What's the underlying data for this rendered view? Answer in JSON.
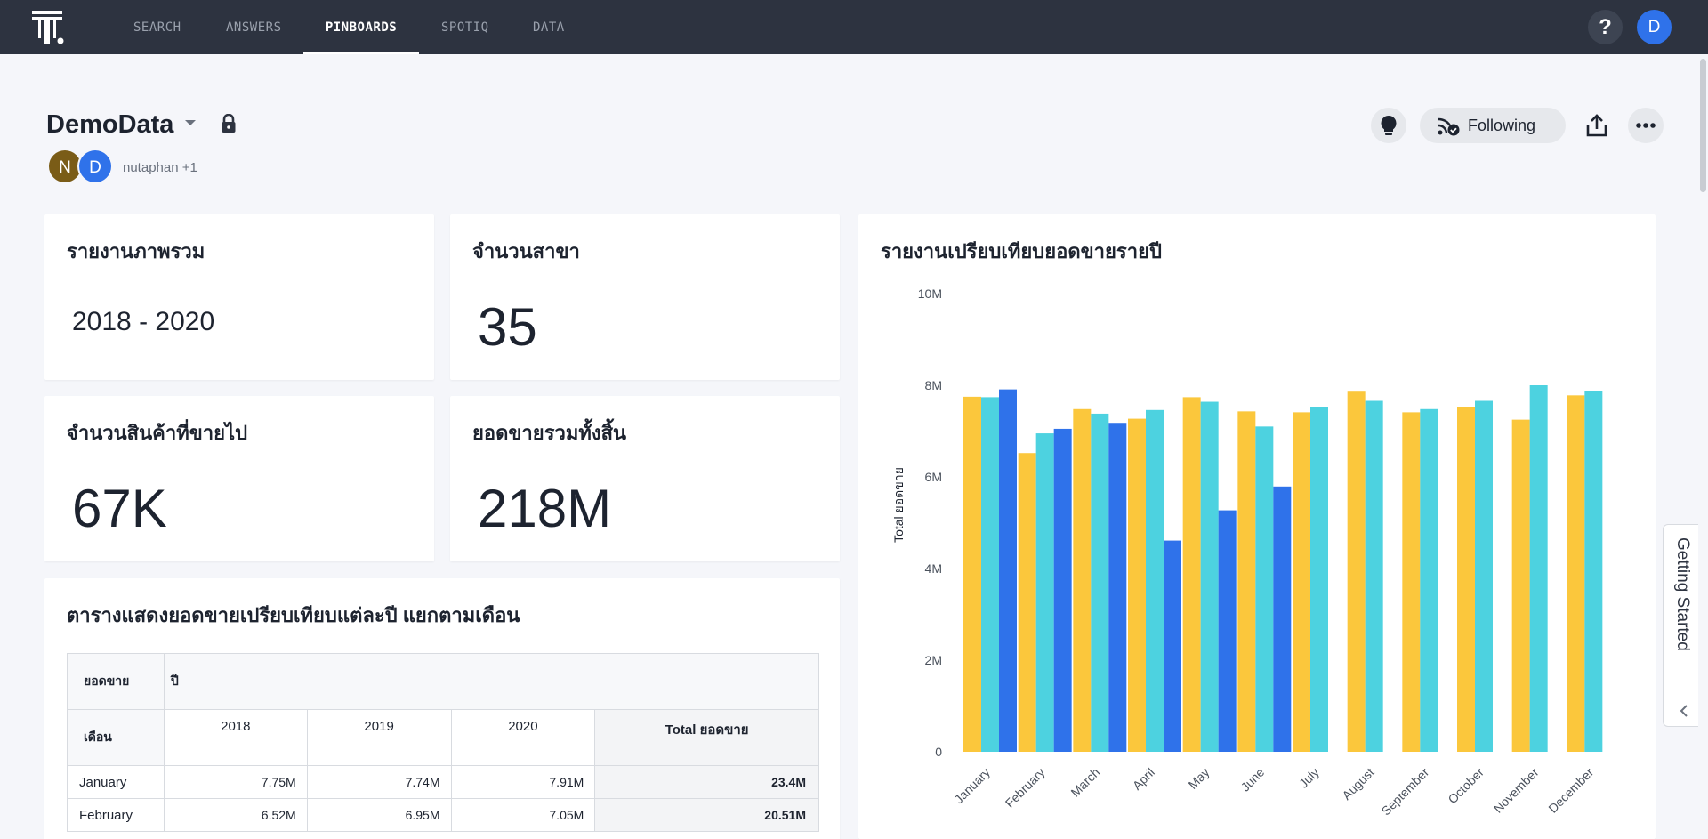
{
  "nav": {
    "items": [
      {
        "label": "SEARCH"
      },
      {
        "label": "ANSWERS"
      },
      {
        "label": "PINBOARDS"
      },
      {
        "label": "SPOTIQ"
      },
      {
        "label": "DATA"
      }
    ],
    "active": "PINBOARDS",
    "help_label": "?",
    "user_initial": "D"
  },
  "pinboard": {
    "title": "DemoData",
    "avatars": [
      {
        "initial": "N",
        "color": "#7a5c17"
      },
      {
        "initial": "D",
        "color": "#2f72ea"
      }
    ],
    "owners": "nutaphan +1",
    "follow_label": "Following"
  },
  "kpis": [
    {
      "title": "รายงานภาพรวม",
      "value": "2018 - 2020"
    },
    {
      "title": "จำนวนสาขา",
      "value": "35"
    },
    {
      "title": "จำนวนสินค้าที่ขายไป",
      "value": "67K"
    },
    {
      "title": "ยอดขายรวมทั้งสิ้น",
      "value": "218M"
    }
  ],
  "table": {
    "title": "ตารางแสดงยอดขายเปรียบเทียบแต่ละปี แยกตามเดือน",
    "measure_header": "ยอดขาย",
    "column_group_header": "ปี",
    "row_header": "เดือน",
    "columns": [
      "2018",
      "2019",
      "2020"
    ],
    "total_header": "Total ยอดขาย",
    "rows": [
      {
        "label": "January",
        "values": [
          "7.75M",
          "7.74M",
          "7.91M"
        ],
        "total": "23.4M"
      },
      {
        "label": "February",
        "values": [
          "6.52M",
          "6.95M",
          "7.05M"
        ],
        "total": "20.51M"
      }
    ]
  },
  "chart_title": "รายงานเปรียบเทียบยอดขายรายปี",
  "chart_data": {
    "type": "bar",
    "title": "รายงานเปรียบเทียบยอดขายรายปี",
    "xlabel": "",
    "ylabel": "Total ยอดขาย",
    "ylim": [
      0,
      10000000
    ],
    "yticks": [
      "0",
      "2M",
      "4M",
      "6M",
      "8M",
      "10M"
    ],
    "categories": [
      "January",
      "February",
      "March",
      "April",
      "May",
      "June",
      "July",
      "August",
      "September",
      "October",
      "November",
      "December"
    ],
    "series": [
      {
        "color": "#fbc73c",
        "values": [
          7750000,
          6520000,
          7480000,
          7270000,
          7740000,
          7430000,
          7410000,
          7860000,
          7410000,
          7520000,
          7250000,
          7780000
        ]
      },
      {
        "color": "#4dd2e0",
        "values": [
          7740000,
          6950000,
          7380000,
          7460000,
          7640000,
          7100000,
          7530000,
          7660000,
          7480000,
          7660000,
          8000000,
          7870000
        ]
      },
      {
        "color": "#2f72ea",
        "values": [
          7910000,
          7050000,
          7180000,
          4610000,
          5270000,
          5790000,
          null,
          null,
          null,
          null,
          null,
          null
        ]
      }
    ],
    "grid": false,
    "legend": "none"
  },
  "side_tab": {
    "label": "Getting Started"
  }
}
